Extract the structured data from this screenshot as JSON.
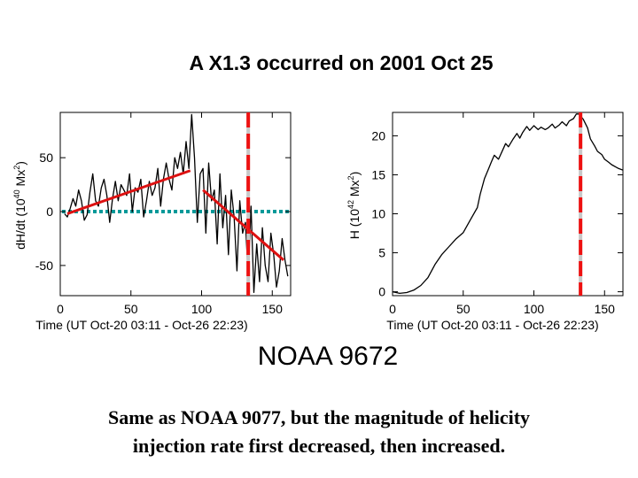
{
  "slide": {
    "title": "A X1.3 occurred  on 2001 Oct 25",
    "region_label": "NOAA 9672",
    "caption_line1": "Same as NOAA 9077, but the magnitude of helicity",
    "caption_line2": "injection  rate first decreased, then increased."
  },
  "colors": {
    "trend_line": "#dd1111",
    "flare_marker": "#ee1111",
    "zero_line": "#009999",
    "data_line": "#000000"
  },
  "chart_data": [
    {
      "type": "line",
      "name": "helicity-injection-rate",
      "xlabel": "Time (UT Oct-20 03:11 - Oct-26 22:23)",
      "ylabel": "dH/dt (10^40 Mx^2)",
      "ylabel_parts": {
        "base": "dH/dt (10",
        "exp": "40",
        "unit": " Mx",
        "unit_exp": "2",
        "close": ")"
      },
      "xlim": [
        0,
        163
      ],
      "ylim": [
        -78,
        92
      ],
      "xticks": [
        0,
        50,
        100,
        150
      ],
      "yticks": [
        -50,
        0,
        50
      ],
      "flare_time": 133,
      "zero_line": 0,
      "trend_lines": [
        {
          "x": [
            5,
            92
          ],
          "y": [
            -2,
            38
          ]
        },
        {
          "x": [
            101,
            158
          ],
          "y": [
            20,
            -45
          ]
        }
      ],
      "series": [
        {
          "name": "dH/dt",
          "x": [
            3,
            5,
            7,
            9,
            11,
            13,
            15,
            17,
            19,
            21,
            23,
            25,
            27,
            29,
            31,
            33,
            35,
            37,
            39,
            41,
            43,
            45,
            47,
            49,
            51,
            53,
            55,
            57,
            59,
            61,
            63,
            65,
            67,
            69,
            71,
            73,
            75,
            77,
            79,
            81,
            83,
            85,
            87,
            89,
            91,
            93,
            95,
            97,
            99,
            101,
            103,
            105,
            107,
            109,
            111,
            113,
            115,
            117,
            119,
            121,
            123,
            125,
            127,
            129,
            131,
            133,
            135,
            137,
            139,
            141,
            143,
            145,
            147,
            149,
            151,
            153,
            155,
            157,
            159,
            161
          ],
          "y": [
            -2,
            -5,
            3,
            12,
            5,
            20,
            10,
            -8,
            -3,
            18,
            35,
            10,
            5,
            22,
            30,
            15,
            -10,
            12,
            28,
            10,
            25,
            20,
            15,
            35,
            0,
            22,
            18,
            30,
            -5,
            10,
            28,
            15,
            22,
            40,
            5,
            30,
            45,
            30,
            20,
            50,
            40,
            55,
            35,
            65,
            40,
            90,
            50,
            -10,
            35,
            40,
            -20,
            45,
            10,
            20,
            -30,
            35,
            -15,
            15,
            -40,
            20,
            -5,
            -55,
            10,
            -20,
            -10,
            -60,
            5,
            -75,
            -30,
            -65,
            -15,
            -50,
            -65,
            -20,
            -40,
            -70,
            -55,
            -25,
            -45,
            -60
          ]
        }
      ]
    },
    {
      "type": "line",
      "name": "accumulated-helicity",
      "xlabel": "Time (UT Oct-20 03:11 - Oct-26 22:23)",
      "ylabel": "H (10^42 Mx^2)",
      "ylabel_parts": {
        "base": "H (10",
        "exp": "42",
        "unit": " Mx",
        "unit_exp": "2",
        "close": ")"
      },
      "xlim": [
        0,
        163
      ],
      "ylim": [
        -0.5,
        23
      ],
      "xticks": [
        0,
        50,
        100,
        150
      ],
      "yticks": [
        0,
        5,
        10,
        15,
        20
      ],
      "flare_time": 133,
      "series": [
        {
          "name": "H",
          "x": [
            0,
            5,
            10,
            15,
            20,
            25,
            30,
            35,
            40,
            45,
            50,
            55,
            60,
            62,
            65,
            68,
            70,
            72,
            75,
            78,
            80,
            82,
            85,
            88,
            90,
            92,
            95,
            97,
            100,
            103,
            105,
            108,
            110,
            113,
            115,
            118,
            120,
            123,
            125,
            128,
            130,
            132,
            135,
            138,
            140,
            143,
            145,
            148,
            150,
            153,
            155,
            158,
            160,
            163
          ],
          "y": [
            0,
            -0.2,
            -0.1,
            0.2,
            0.8,
            1.8,
            3.5,
            4.8,
            5.8,
            6.8,
            7.6,
            9.2,
            10.8,
            12.5,
            14.5,
            15.8,
            16.7,
            17.5,
            17.0,
            18.2,
            19.0,
            18.6,
            19.5,
            20.3,
            19.7,
            20.4,
            21.2,
            20.7,
            21.3,
            20.8,
            21.1,
            20.8,
            21.0,
            21.5,
            21.0,
            21.4,
            21.8,
            21.3,
            21.9,
            22.2,
            22.8,
            22.8,
            22.1,
            21.0,
            19.6,
            18.7,
            18.0,
            17.6,
            17.0,
            16.6,
            16.3,
            16.0,
            15.8,
            15.6
          ]
        }
      ]
    }
  ]
}
